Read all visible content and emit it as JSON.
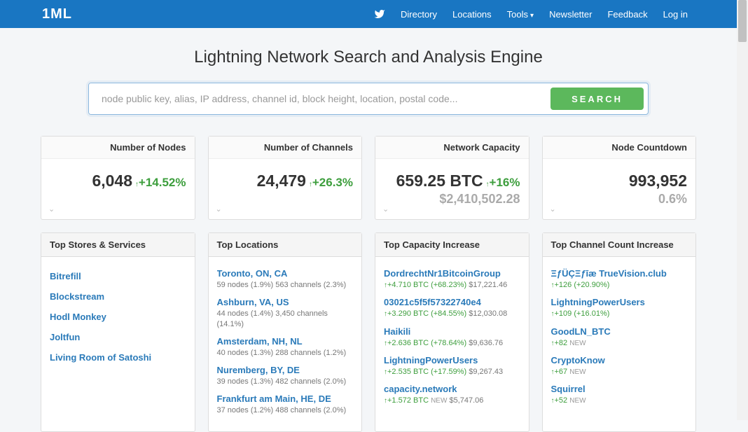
{
  "logo": "1ML",
  "nav": {
    "directory": "Directory",
    "locations": "Locations",
    "tools": "Tools",
    "newsletter": "Newsletter",
    "feedback": "Feedback",
    "login": "Log in"
  },
  "hero": {
    "title": "Lightning Network Search and Analysis Engine",
    "placeholder": "node public key, alias, IP address, channel id, block height, location, postal code...",
    "button": "SEARCH"
  },
  "stats": {
    "nodes": {
      "title": "Number of Nodes",
      "value": "6,048",
      "change": "+14.52%"
    },
    "channels": {
      "title": "Number of Channels",
      "value": "24,479",
      "change": "+26.3%"
    },
    "capacity": {
      "title": "Network Capacity",
      "value": "659.25 BTC",
      "change": "+16%",
      "sub": "$2,410,502.28"
    },
    "countdown": {
      "title": "Node Countdown",
      "value": "993,952",
      "sub": "0.6%"
    }
  },
  "stores": {
    "title": "Top Stores & Services",
    "items": [
      "Bitrefill",
      "Blockstream",
      "Hodl Monkey",
      "Joltfun",
      "Living Room of Satoshi"
    ]
  },
  "locations": {
    "title": "Top Locations",
    "items": [
      {
        "name": "Toronto, ON, CA",
        "sub": "59 nodes (1.9%) 563 channels (2.3%)"
      },
      {
        "name": "Ashburn, VA, US",
        "sub": "44 nodes (1.4%) 3,450 channels (14.1%)"
      },
      {
        "name": "Amsterdam, NH, NL",
        "sub": "40 nodes (1.3%) 288 channels (1.2%)"
      },
      {
        "name": "Nuremberg, BY, DE",
        "sub": "39 nodes (1.3%) 482 channels (2.0%)"
      },
      {
        "name": "Frankfurt am Main, HE, DE",
        "sub": "37 nodes (1.2%) 488 channels (2.0%)"
      }
    ]
  },
  "capacity_inc": {
    "title": "Top Capacity Increase",
    "items": [
      {
        "name": "DordrechtNr1BitcoinGroup",
        "btc": "+4.710 BTC",
        "pct": "(+68.23%)",
        "usd": "$17,221.46"
      },
      {
        "name": "03021c5f5f57322740e4",
        "btc": "+3.290 BTC",
        "pct": "(+84.55%)",
        "usd": "$12,030.08"
      },
      {
        "name": "Haikili",
        "btc": "+2.636 BTC",
        "pct": "(+78.64%)",
        "usd": "$9,636.76"
      },
      {
        "name": "LightningPowerUsers",
        "btc": "+2.535 BTC",
        "pct": "(+17.59%)",
        "usd": "$9,267.43"
      },
      {
        "name": "capacity.network",
        "btc": "+1.572 BTC",
        "pct": "NEW",
        "usd": "$5,747.06"
      }
    ]
  },
  "channel_inc": {
    "title": "Top Channel Count Increase",
    "items": [
      {
        "name": "ΞƒÜÇΞƒīæ TrueVision.club",
        "count": "+126",
        "pct": "(+20.90%)"
      },
      {
        "name": "LightningPowerUsers",
        "count": "+109",
        "pct": "(+16.01%)"
      },
      {
        "name": "GoodLN_BTC",
        "count": "+82",
        "pct": "NEW"
      },
      {
        "name": "CryptoKnow",
        "count": "+67",
        "pct": "NEW"
      },
      {
        "name": "Squirrel",
        "count": "+52",
        "pct": "NEW"
      }
    ]
  }
}
